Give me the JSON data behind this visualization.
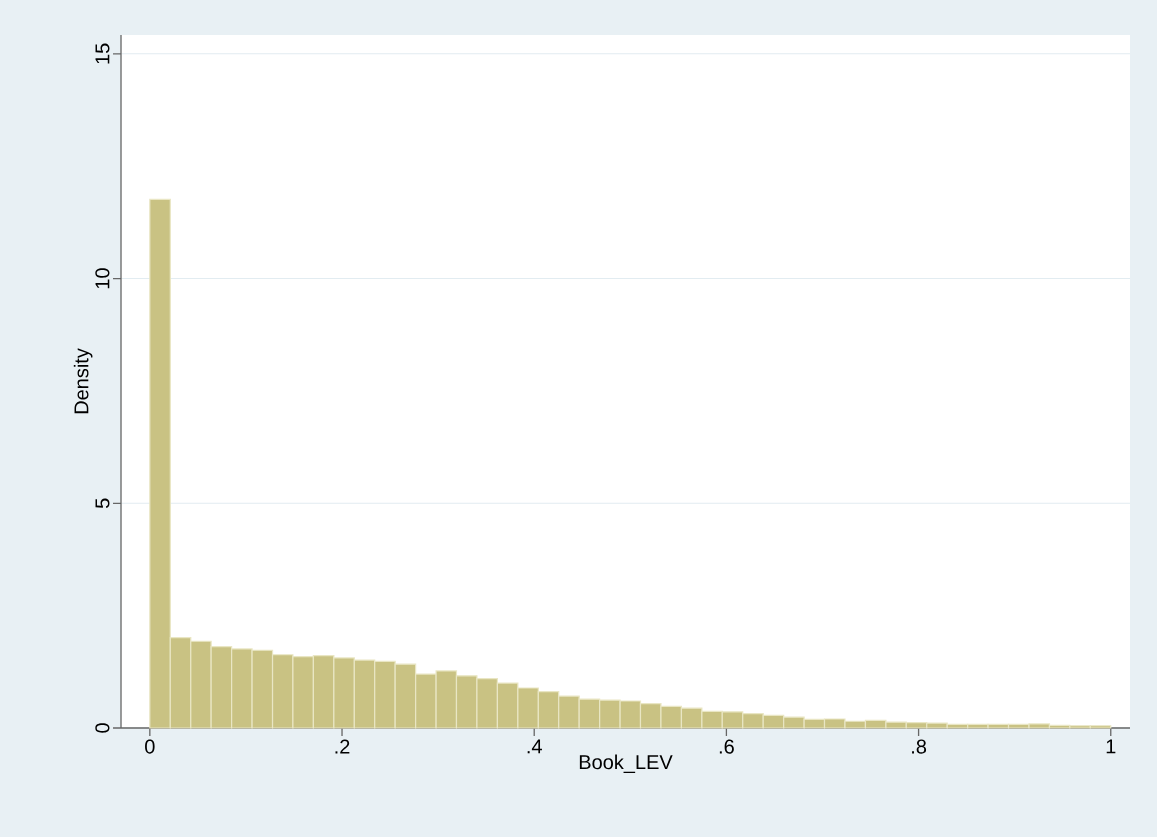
{
  "chart_data": {
    "type": "histogram",
    "xlabel": "Book_LEV",
    "ylabel": "Density",
    "color": "#c9c283",
    "bins": [
      0,
      0.0213,
      0.0426,
      0.0638,
      0.0851,
      0.1064,
      0.1277,
      0.1489,
      0.1702,
      0.1915,
      0.2128,
      0.234,
      0.2553,
      0.2766,
      0.2979,
      0.3191,
      0.3404,
      0.3617,
      0.383,
      0.4043,
      0.4255,
      0.4468,
      0.4681,
      0.4894,
      0.5106,
      0.5319,
      0.5532,
      0.5745,
      0.5957,
      0.617,
      0.6383,
      0.6596,
      0.6809,
      0.7021,
      0.7234,
      0.7447,
      0.766,
      0.7872,
      0.8085,
      0.8298,
      0.8511,
      0.8723,
      0.8936,
      0.9149,
      0.9362,
      0.9574,
      0.9787,
      1
    ],
    "values": [
      11.76,
      2.01,
      1.93,
      1.81,
      1.76,
      1.73,
      1.63,
      1.59,
      1.61,
      1.56,
      1.51,
      1.48,
      1.42,
      1.2,
      1.27,
      1.16,
      1.1,
      1.0,
      0.89,
      0.81,
      0.71,
      0.64,
      0.62,
      0.6,
      0.54,
      0.48,
      0.44,
      0.37,
      0.36,
      0.32,
      0.28,
      0.24,
      0.19,
      0.2,
      0.15,
      0.17,
      0.13,
      0.12,
      0.11,
      0.08,
      0.08,
      0.08,
      0.08,
      0.09,
      0.06,
      0.05,
      0.05
    ],
    "xlim": [
      -0.03,
      1.02
    ],
    "ylim": [
      0,
      15.42
    ],
    "xticks": [
      0,
      {
        "value": 0.2,
        "label": ".2"
      },
      {
        "value": 0.4,
        "label": ".4"
      },
      {
        "value": 0.6,
        "label": ".6"
      },
      {
        "value": 0.8,
        "label": ".8"
      },
      1
    ],
    "yticks": [
      0,
      5,
      10,
      15
    ],
    "grid": "y"
  }
}
